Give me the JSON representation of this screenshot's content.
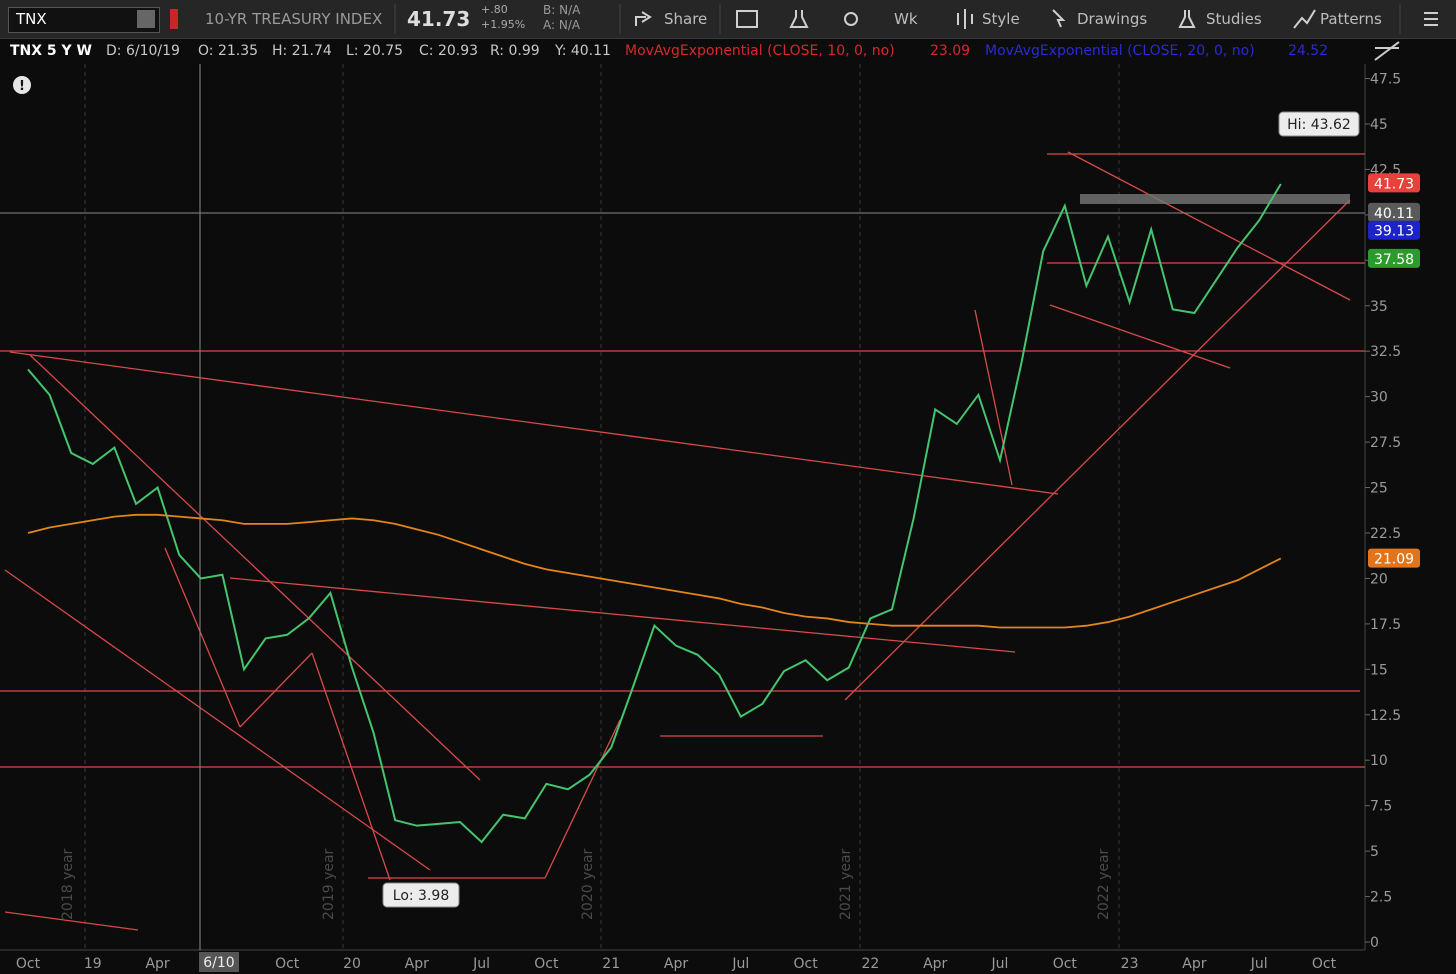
{
  "toolbar": {
    "symbol": "TNX",
    "description": "10-YR TREASURY INDEX",
    "last": "41.73",
    "change": "+.80",
    "change_pct": "+1.95%",
    "bid": "B: N/A",
    "ask": "A: N/A",
    "buttons": [
      "Share",
      "Wk",
      "Style",
      "Drawings",
      "Studies",
      "Patterns"
    ]
  },
  "info_bar": {
    "items": [
      "TNX 5 Y W",
      "D: 6/10/19",
      "O: 21.35",
      "H: 21.74",
      "L: 20.75",
      "C: 20.93",
      "R: 0.99",
      "Y: 40.11"
    ],
    "studies": [
      {
        "text": "MovAvgExponential (CLOSE, 10, 0, no)",
        "value": "23.09",
        "color": "#d8272b"
      },
      {
        "text": "MovAvgExponential (CLOSE, 20, 0, no)",
        "value": "24.52",
        "color": "#2a2ad6"
      }
    ]
  },
  "chart_data": {
    "type": "line",
    "categories": [
      "Oct",
      null,
      null,
      "19",
      null,
      null,
      "Apr",
      null,
      null,
      null,
      null,
      null,
      "Oct",
      null,
      null,
      "20",
      null,
      null,
      "Apr",
      null,
      null,
      "Jul",
      null,
      null,
      "Oct",
      null,
      null,
      "21",
      null,
      null,
      "Apr",
      null,
      null,
      "Jul",
      null,
      null,
      "Oct",
      null,
      null,
      "22",
      null,
      null,
      "Apr",
      null,
      null,
      "Jul",
      null,
      null,
      "Oct",
      null,
      null,
      "23",
      null,
      null,
      "Apr",
      null,
      null,
      "Jul",
      null,
      null,
      "Oct"
    ],
    "series": [
      {
        "color": "#45c46e",
        "values": [
          31.5,
          30.1,
          26.9,
          26.3,
          27.2,
          24.1,
          25.0,
          21.3,
          20.0,
          20.2,
          15.0,
          16.7,
          16.9,
          17.8,
          19.2,
          15.1,
          11.5,
          6.7,
          6.4,
          6.5,
          6.6,
          5.5,
          7.0,
          6.8,
          8.7,
          8.4,
          9.2,
          10.7,
          14.0,
          17.4,
          16.3,
          15.8,
          14.7,
          12.4,
          13.1,
          14.9,
          15.5,
          14.4,
          15.1,
          17.8,
          18.3,
          23.3,
          29.3,
          28.5,
          30.1,
          26.5,
          31.9,
          38.0,
          40.5,
          36.1,
          38.8,
          35.2,
          39.2,
          34.8,
          34.6,
          36.4,
          38.2,
          39.7,
          41.7,
          null,
          null
        ]
      },
      {
        "color": "#e2851c",
        "values": [
          22.5,
          22.8,
          23.0,
          23.2,
          23.4,
          23.5,
          23.5,
          23.4,
          23.3,
          23.2,
          23.0,
          23.0,
          23.0,
          23.1,
          23.2,
          23.3,
          23.2,
          23.0,
          22.7,
          22.4,
          22.0,
          21.6,
          21.2,
          20.8,
          20.5,
          20.3,
          20.1,
          19.9,
          19.7,
          19.5,
          19.3,
          19.1,
          18.9,
          18.6,
          18.4,
          18.1,
          17.9,
          17.8,
          17.6,
          17.5,
          17.4,
          17.4,
          17.4,
          17.4,
          17.4,
          17.3,
          17.3,
          17.3,
          17.3,
          17.4,
          17.6,
          17.9,
          18.3,
          18.7,
          19.1,
          19.5,
          19.9,
          20.5,
          21.1,
          null,
          null
        ]
      }
    ],
    "ylim": [
      0,
      48.3
    ],
    "yticks": [
      0,
      2.5,
      5,
      7.5,
      10,
      12.5,
      15,
      17.5,
      20,
      22.5,
      25,
      27.5,
      30,
      32.5,
      35,
      37.5,
      40,
      42.5,
      45,
      47.5
    ],
    "price_labels": [
      {
        "value": 41.73,
        "color": "#e8413c"
      },
      {
        "value": 40.11,
        "color": "#5a5a5a"
      },
      {
        "value": 39.13,
        "color": "#1b23c9"
      },
      {
        "value": 37.58,
        "color": "#2c9a2c"
      },
      {
        "value": 21.09,
        "color": "#e2751c"
      }
    ],
    "annotations": [
      "Hi: 43.62",
      "Lo: 3.98"
    ],
    "year_labels": [
      "2018 year",
      "2019 year",
      "2020 year",
      "2021 year",
      "2022 year"
    ],
    "cursor_label": "6/10"
  }
}
